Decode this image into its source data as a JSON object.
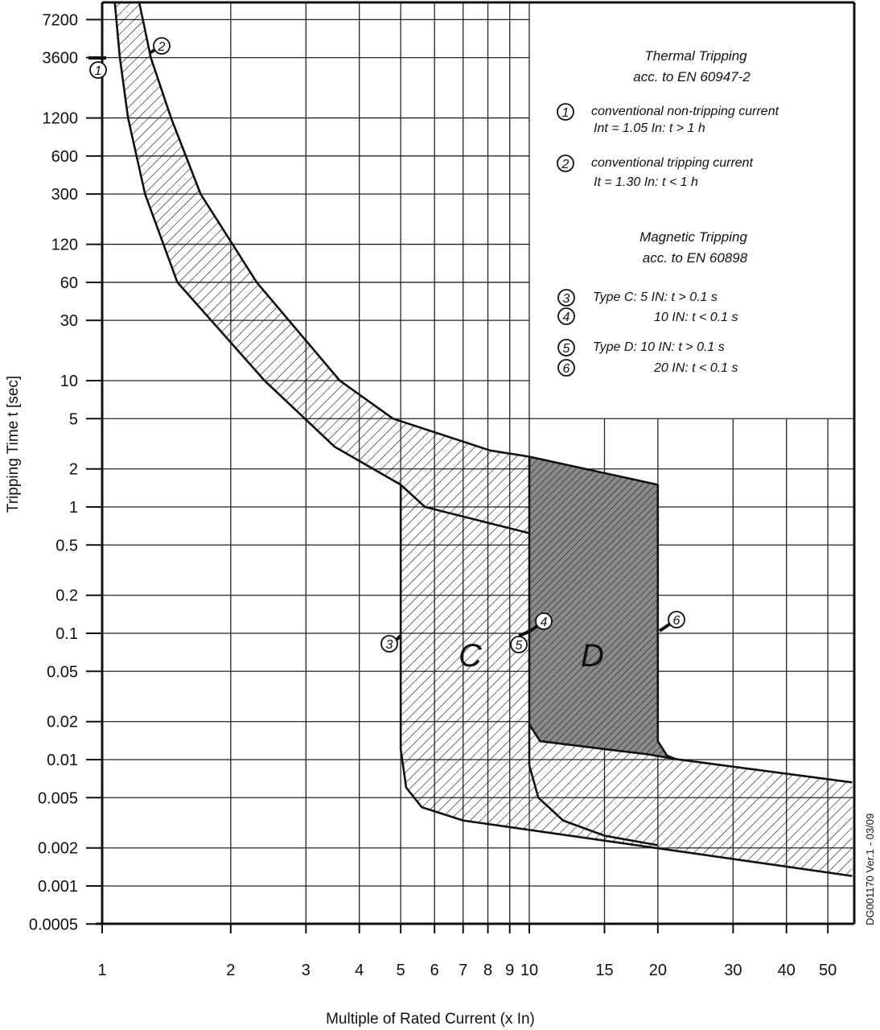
{
  "chart_data": {
    "type": "line",
    "xlabel": "Multiple of Rated Current (x In)",
    "ylabel": "Tripping Time t [sec]",
    "x_scale": "log",
    "y_scale": "log",
    "xlim": [
      1,
      57
    ],
    "ylim": [
      0.0005,
      10000
    ],
    "grid": true,
    "x_ticks": [
      "1",
      "2",
      "3",
      "4",
      "5",
      "6",
      "7",
      "8",
      "9",
      "10",
      "15",
      "20",
      "30",
      "40",
      "50"
    ],
    "y_ticks": [
      "7200",
      "3600",
      "1200",
      "600",
      "300",
      "120",
      "60",
      "30",
      "10",
      "5",
      "2",
      "1",
      "0.5",
      "0.2",
      "0.1",
      "0.05",
      "0.02",
      "0.01",
      "0.005",
      "0.002",
      "0.001",
      "0.0005"
    ],
    "series": [
      {
        "id": "thermal_lower",
        "points": [
          [
            1.07,
            10000
          ],
          [
            1.1,
            3600
          ],
          [
            1.15,
            1200
          ],
          [
            1.26,
            300
          ],
          [
            1.5,
            60
          ],
          [
            2.4,
            10
          ],
          [
            3.5,
            3
          ],
          [
            5,
            1.5
          ],
          [
            5.7,
            1
          ],
          [
            10,
            0.62
          ]
        ]
      },
      {
        "id": "thermal_upper",
        "points": [
          [
            1.22,
            10000
          ],
          [
            1.3,
            3600
          ],
          [
            1.45,
            1200
          ],
          [
            1.7,
            300
          ],
          [
            2.3,
            60
          ],
          [
            3.6,
            10
          ],
          [
            4.8,
            5
          ],
          [
            8.1,
            2.8
          ],
          [
            10,
            2.5
          ],
          [
            20,
            1.5
          ]
        ]
      },
      {
        "id": "magnetic_C_lower",
        "points": [
          [
            5,
            0.012
          ],
          [
            5.15,
            0.006
          ],
          [
            5.6,
            0.0042
          ],
          [
            7,
            0.0033
          ],
          [
            57,
            0.0012
          ]
        ]
      },
      {
        "id": "magnetic_D_lower",
        "points": [
          [
            10,
            0.009
          ],
          [
            10.5,
            0.005
          ],
          [
            12,
            0.0033
          ],
          [
            15,
            0.0025
          ],
          [
            20,
            0.0021
          ]
        ]
      },
      {
        "id": "magnetic_upper",
        "points": [
          [
            10,
            0.019
          ],
          [
            10.6,
            0.014
          ],
          [
            19,
            0.011
          ],
          [
            22,
            0.0101
          ],
          [
            57,
            0.0066
          ]
        ]
      },
      {
        "id": "D_right_edge",
        "points": [
          [
            20,
            1.5
          ],
          [
            20,
            0.014
          ],
          [
            21,
            0.0108
          ],
          [
            22,
            0.0101
          ]
        ]
      }
    ],
    "region_labels": [
      "C",
      "D"
    ],
    "markers": [
      "1",
      "2",
      "3",
      "4",
      "5",
      "6"
    ],
    "fill_colors": {
      "hatch": "#111111",
      "D_region": "#8a8a8a"
    }
  },
  "legend": {
    "thermal_title": "Thermal Tripping",
    "thermal_subtitle": "acc. to EN 60947-2",
    "item1_line1": "conventional non-tripping current",
    "item1_line2": "Int  = 1.05 In:  t > 1 h",
    "item2_line1": "conventional tripping current",
    "item2_line2": "It  = 1.30 In:  t < 1 h",
    "magnetic_title": "Magnetic Tripping",
    "magnetic_subtitle": "acc. to EN 60898",
    "item3": "Type C:    5 IN: t > 0.1 s",
    "item4": "10 IN: t < 0.1 s",
    "item5": "Type D:  10 IN: t > 0.1 s",
    "item6": "20 IN: t < 0.1 s"
  },
  "doc_code": "DG001170 Ver.1 - 03/09"
}
